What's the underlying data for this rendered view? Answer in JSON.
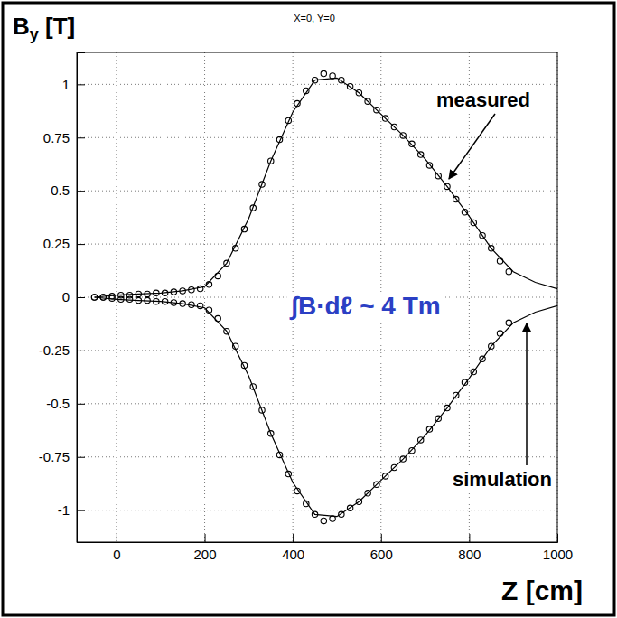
{
  "chart_data": {
    "type": "scatter",
    "title": "X=0, Y=0",
    "y_label": "By [T]",
    "x_label": "Z [cm]",
    "xlim": [
      -90,
      1000
    ],
    "ylim": [
      -1.15,
      1.15
    ],
    "xticks": [
      0,
      200,
      400,
      600,
      800,
      1000
    ],
    "yticks": [
      -1,
      -0.75,
      -0.5,
      -0.25,
      0,
      0.25,
      0.5,
      0.75,
      1
    ],
    "grid": true,
    "annotations": [
      {
        "text": "measured"
      },
      {
        "text": "simulation"
      },
      {
        "text": "∫B·dℓ ~ 4 Tm"
      }
    ],
    "series": [
      {
        "type": "scatter",
        "marker": "circle",
        "color": "#000000",
        "x": [
          -50,
          -30,
          -10,
          10,
          30,
          50,
          70,
          90,
          110,
          130,
          150,
          170,
          190,
          210,
          230,
          250,
          270,
          290,
          310,
          330,
          350,
          370,
          390,
          410,
          430,
          450,
          470,
          490,
          510,
          530,
          550,
          570,
          590,
          610,
          630,
          650,
          670,
          690,
          710,
          730,
          750,
          770,
          790,
          810,
          830,
          850,
          870,
          890
        ],
        "values": [
          0.0,
          0.0,
          0.005,
          0.01,
          0.01,
          0.015,
          0.015,
          0.02,
          0.02,
          0.025,
          0.03,
          0.035,
          0.04,
          0.06,
          0.1,
          0.16,
          0.23,
          0.32,
          0.42,
          0.53,
          0.64,
          0.74,
          0.83,
          0.91,
          0.97,
          1.02,
          1.05,
          1.04,
          1.02,
          0.99,
          0.96,
          0.92,
          0.88,
          0.84,
          0.8,
          0.76,
          0.72,
          0.67,
          0.62,
          0.57,
          0.52,
          0.46,
          0.4,
          0.35,
          0.29,
          0.23,
          0.17,
          0.12
        ]
      },
      {
        "type": "scatter",
        "marker": "circle",
        "color": "#000000",
        "x": [
          -50,
          -30,
          -10,
          10,
          30,
          50,
          70,
          90,
          110,
          130,
          150,
          170,
          190,
          210,
          230,
          250,
          270,
          290,
          310,
          330,
          350,
          370,
          390,
          410,
          430,
          450,
          470,
          490,
          510,
          530,
          550,
          570,
          590,
          610,
          630,
          650,
          670,
          690,
          710,
          730,
          750,
          770,
          790,
          810,
          830,
          850,
          870,
          890
        ],
        "values": [
          0.0,
          0.0,
          -0.005,
          -0.01,
          -0.01,
          -0.015,
          -0.015,
          -0.02,
          -0.02,
          -0.025,
          -0.03,
          -0.035,
          -0.04,
          -0.06,
          -0.1,
          -0.16,
          -0.23,
          -0.32,
          -0.42,
          -0.53,
          -0.64,
          -0.74,
          -0.83,
          -0.91,
          -0.97,
          -1.02,
          -1.05,
          -1.04,
          -1.02,
          -0.99,
          -0.96,
          -0.92,
          -0.88,
          -0.84,
          -0.8,
          -0.76,
          -0.72,
          -0.67,
          -0.62,
          -0.57,
          -0.52,
          -0.46,
          -0.4,
          -0.35,
          -0.29,
          -0.23,
          -0.17,
          -0.12
        ]
      },
      {
        "type": "line",
        "line_style": "solid",
        "color": "#000000",
        "x": [
          -50,
          0,
          50,
          100,
          150,
          200,
          250,
          300,
          350,
          400,
          450,
          500,
          550,
          600,
          650,
          700,
          750,
          800,
          850,
          900,
          950,
          1000
        ],
        "values": [
          0.0,
          0.01,
          0.015,
          0.02,
          0.03,
          0.05,
          0.16,
          0.37,
          0.64,
          0.87,
          1.02,
          1.03,
          0.96,
          0.86,
          0.76,
          0.65,
          0.52,
          0.38,
          0.23,
          0.12,
          0.07,
          0.04
        ]
      },
      {
        "type": "line",
        "line_style": "solid",
        "color": "#000000",
        "x": [
          -50,
          0,
          50,
          100,
          150,
          200,
          250,
          300,
          350,
          400,
          450,
          500,
          550,
          600,
          650,
          700,
          750,
          800,
          850,
          900,
          950,
          1000
        ],
        "values": [
          0.0,
          -0.01,
          -0.015,
          -0.02,
          -0.03,
          -0.05,
          -0.16,
          -0.37,
          -0.64,
          -0.87,
          -1.02,
          -1.03,
          -0.96,
          -0.86,
          -0.76,
          -0.65,
          -0.52,
          -0.38,
          -0.23,
          -0.12,
          -0.07,
          -0.04
        ]
      }
    ]
  }
}
